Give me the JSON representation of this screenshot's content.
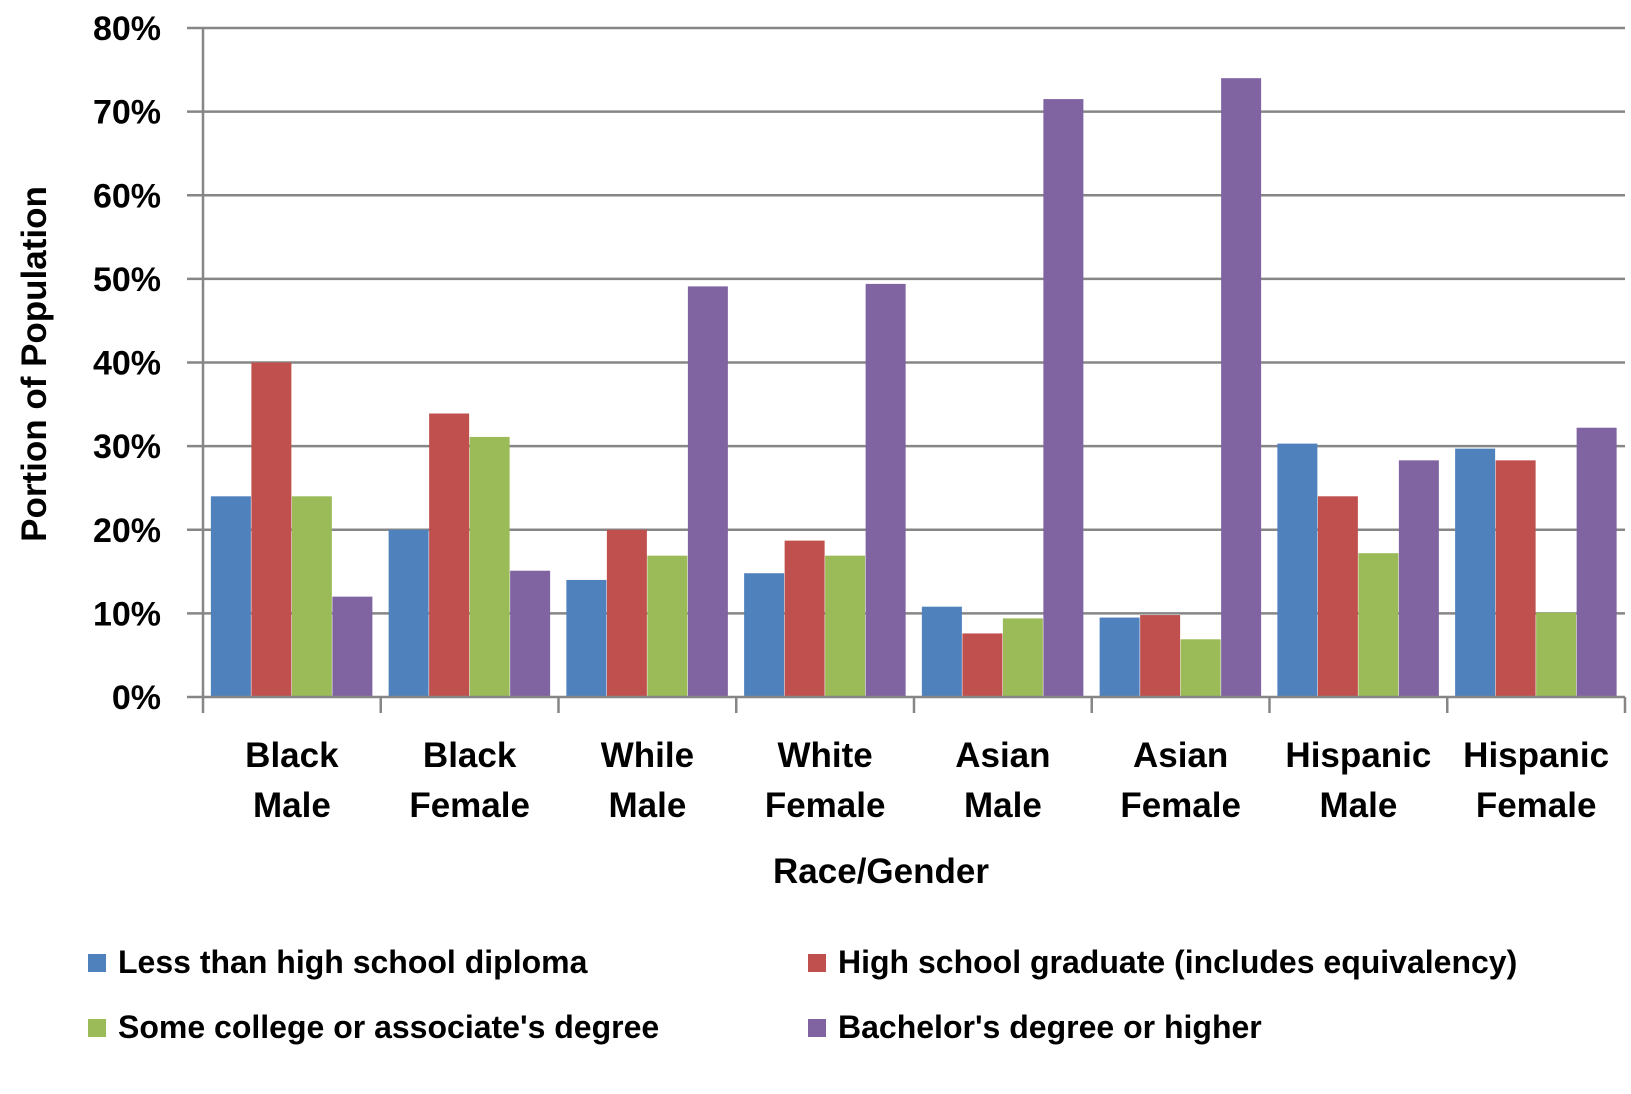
{
  "chart_data": {
    "type": "bar",
    "title": "",
    "xlabel": "Race/Gender",
    "ylabel": "Portion of Population",
    "ylim": [
      0,
      80
    ],
    "y_ticks": [
      "0%",
      "10%",
      "20%",
      "30%",
      "40%",
      "50%",
      "60%",
      "70%",
      "80%"
    ],
    "y_unit": "%",
    "grid": true,
    "legend_position": "bottom",
    "categories": [
      [
        "Black",
        "Male"
      ],
      [
        "Black",
        "Female"
      ],
      [
        "While",
        "Male"
      ],
      [
        "White",
        "Female"
      ],
      [
        "Asian",
        "Male"
      ],
      [
        "Asian",
        "Female"
      ],
      [
        "Hispanic",
        "Male"
      ],
      [
        "Hispanic",
        "Female"
      ]
    ],
    "series": [
      {
        "name": "Less than high school diploma",
        "color": "#4f81bd",
        "values": [
          24,
          20,
          14,
          14.8,
          10.8,
          9.5,
          30.3,
          29.7
        ]
      },
      {
        "name": "High school graduate (includes equivalency)",
        "color": "#c0504d",
        "values": [
          40,
          33.9,
          20,
          18.7,
          7.6,
          9.8,
          24,
          28.3
        ]
      },
      {
        "name": "Some college or associate's degree",
        "color": "#9bbb59",
        "values": [
          24,
          31.1,
          16.9,
          16.9,
          9.4,
          6.9,
          17.2,
          10.1
        ]
      },
      {
        "name": "Bachelor's degree or higher",
        "color": "#8064a2",
        "values": [
          12,
          15.1,
          49.1,
          49.4,
          71.5,
          74,
          28.3,
          32.2
        ]
      }
    ]
  }
}
